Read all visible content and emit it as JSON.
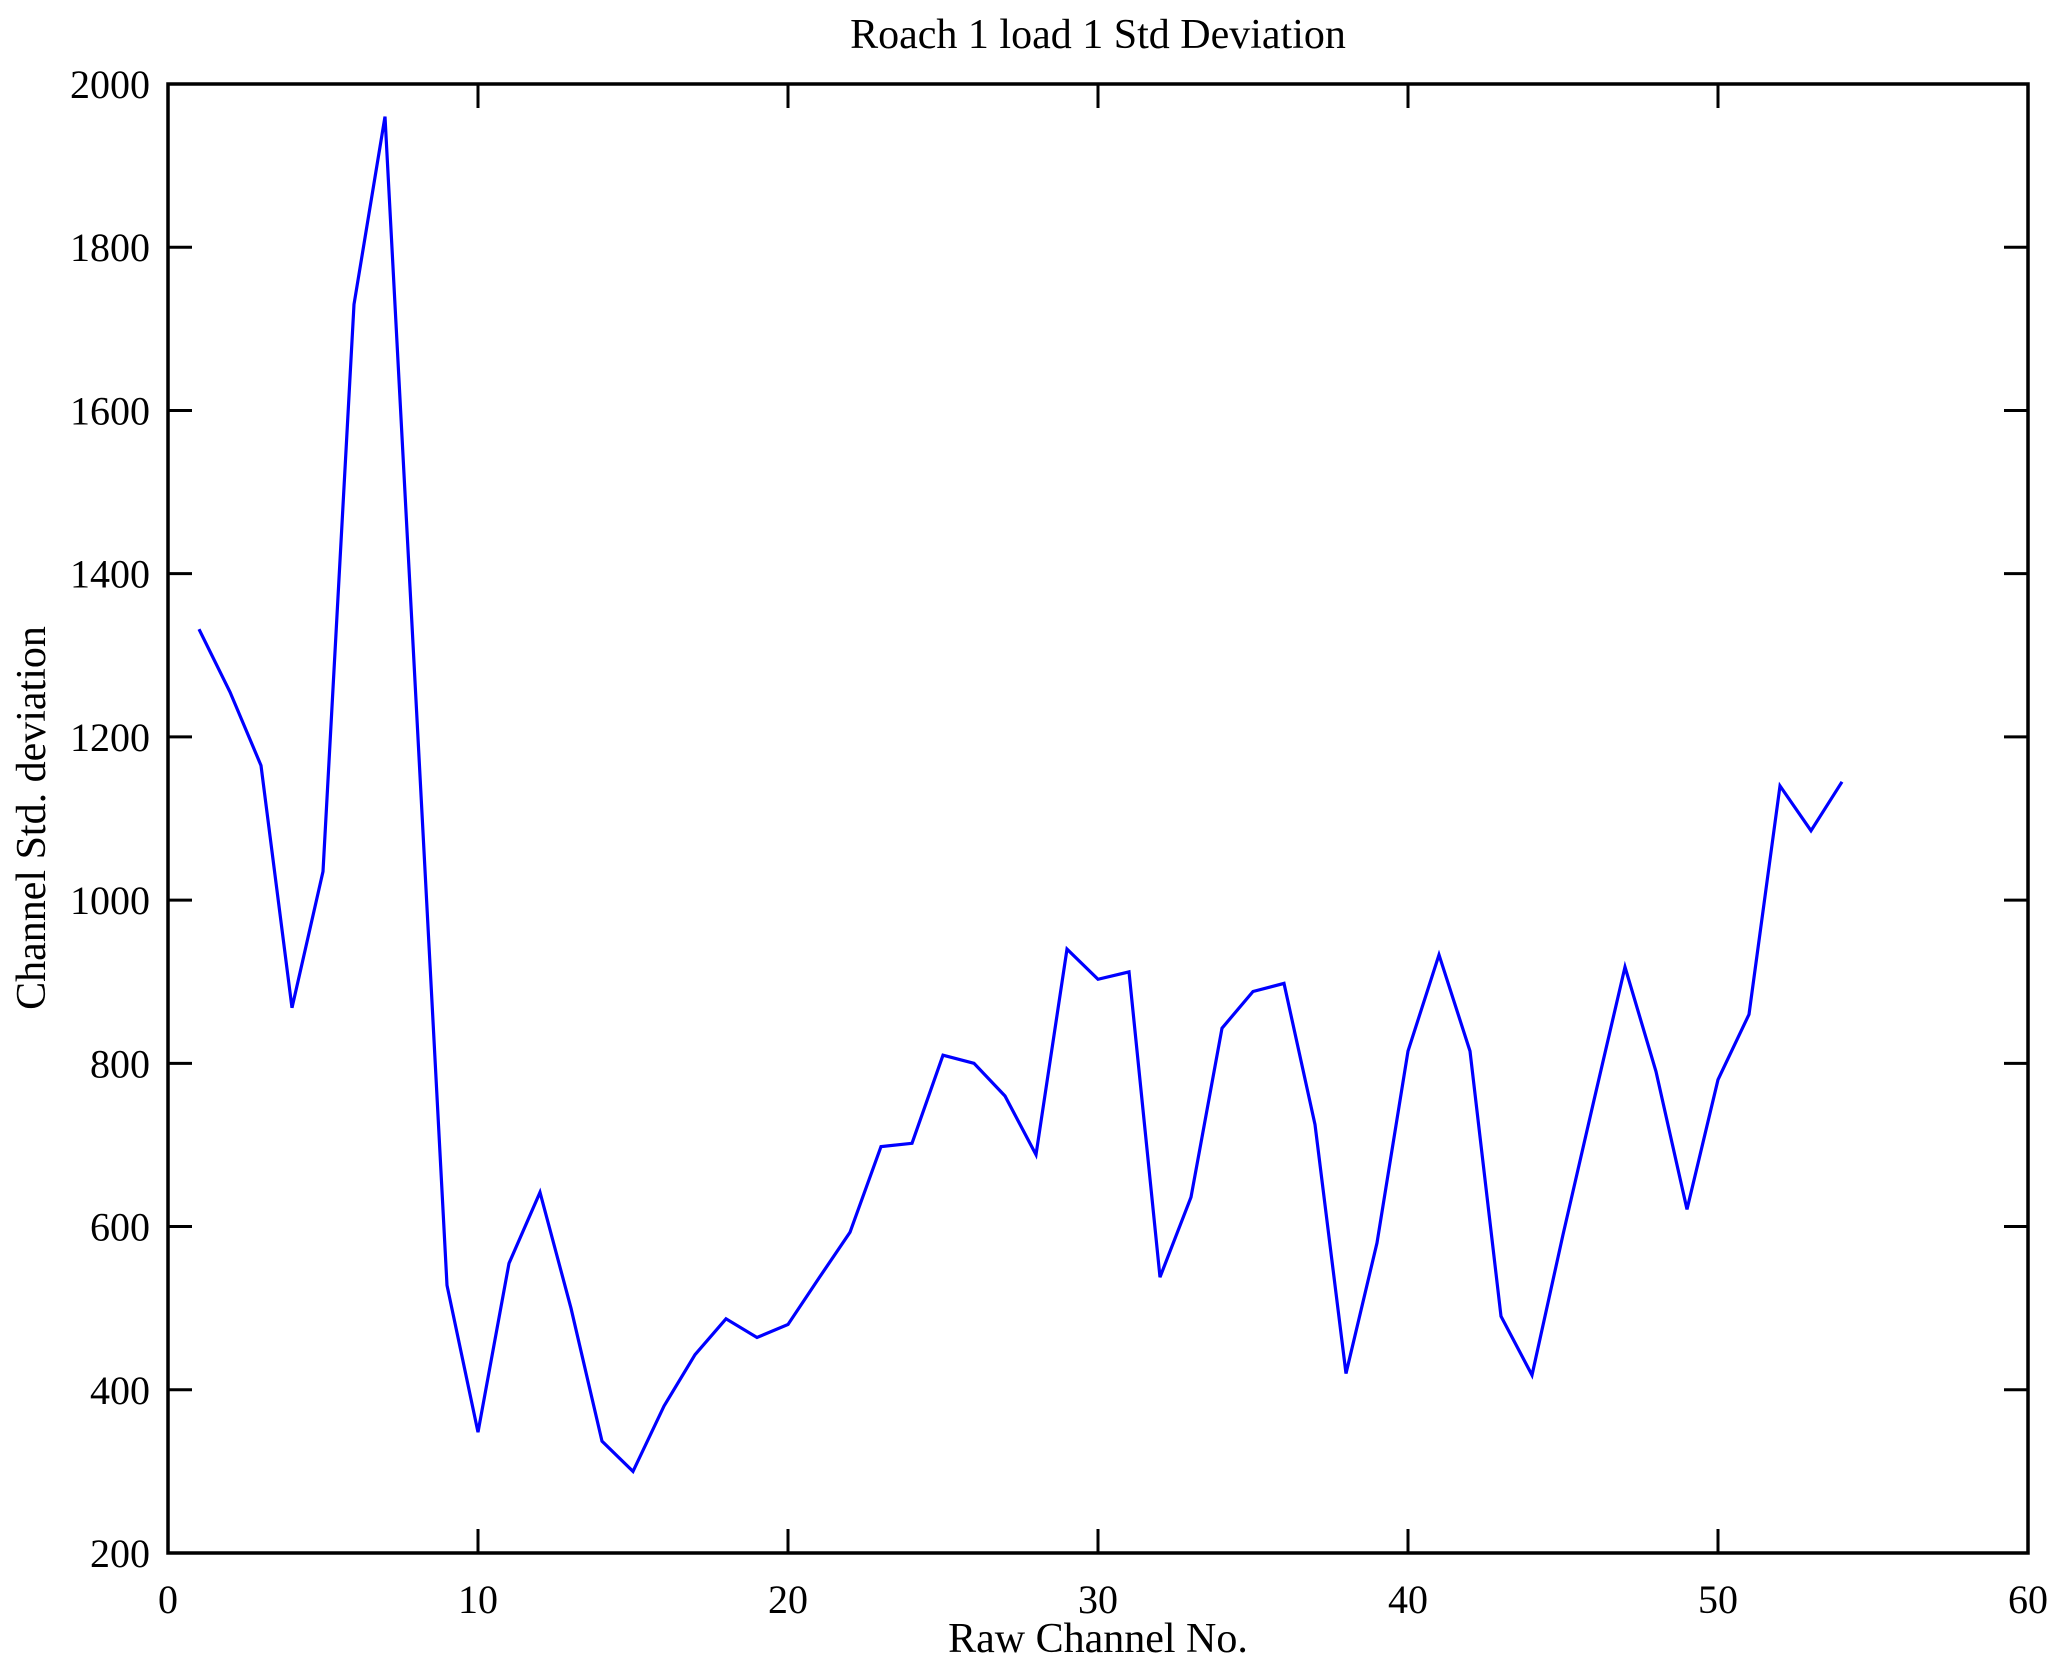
{
  "figure": {
    "background": "#FFFFFF",
    "title": "Roach 1 load 1 Std Deviation",
    "xlabel": "Raw Channel No.",
    "ylabel": "Channel Std. deviation"
  },
  "chart_data": {
    "type": "line",
    "title": "Roach 1 load 1 Std Deviation",
    "xlabel": "Raw Channel No.",
    "ylabel": "Channel Std. deviation",
    "xlim": [
      0,
      60
    ],
    "ylim": [
      200,
      2000
    ],
    "x_ticks": [
      0,
      10,
      20,
      30,
      40,
      50,
      60
    ],
    "y_ticks": [
      200,
      400,
      600,
      800,
      1000,
      1200,
      1400,
      1600,
      1800,
      2000
    ],
    "grid": false,
    "legend_position": "none",
    "line_color": "#0000FF",
    "axis_color": "#000000",
    "background_color": "#FFFFFF",
    "series": [
      {
        "name": "Channel Std. deviation",
        "x": [
          1,
          2,
          3,
          4,
          5,
          6,
          7,
          8,
          9,
          10,
          11,
          12,
          13,
          14,
          15,
          16,
          17,
          18,
          19,
          20,
          21,
          22,
          23,
          24,
          25,
          26,
          27,
          28,
          29,
          30,
          31,
          32,
          33,
          34,
          35,
          36,
          37,
          38,
          39,
          40,
          41,
          42,
          43,
          44,
          45,
          46,
          47,
          48,
          49,
          50,
          51,
          52,
          53,
          54
        ],
        "values": [
          1332,
          1255,
          1165,
          868,
          1035,
          1730,
          1960,
          1245,
          528,
          348,
          555,
          642,
          500,
          337,
          300,
          380,
          443,
          487,
          464,
          480,
          537,
          593,
          698,
          702,
          810,
          800,
          760,
          688,
          940,
          903,
          912,
          538,
          636,
          843,
          888,
          898,
          725,
          420,
          580,
          815,
          933,
          815,
          490,
          418,
          590,
          755,
          918,
          790,
          621,
          780,
          860,
          1140,
          1085,
          1145
        ]
      }
    ]
  }
}
